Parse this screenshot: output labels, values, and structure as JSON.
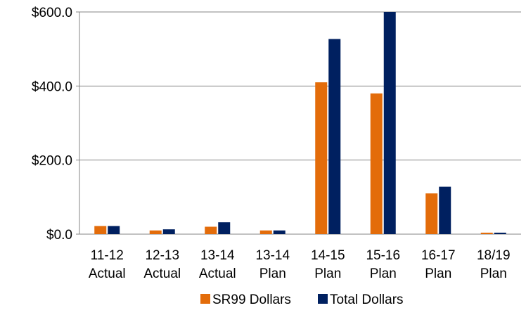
{
  "chart_data": {
    "type": "bar",
    "title": "",
    "xlabel": "",
    "ylabel": "",
    "categories": [
      [
        "11-12",
        "Actual"
      ],
      [
        "12-13",
        "Actual"
      ],
      [
        "13-14",
        "Actual"
      ],
      [
        "13-14",
        "Plan"
      ],
      [
        "14-15",
        "Plan"
      ],
      [
        "15-16",
        "Plan"
      ],
      [
        "16-17",
        "Plan"
      ],
      [
        "18/19",
        "Plan"
      ]
    ],
    "series": [
      {
        "name": "SR99 Dollars",
        "color": "#E36C0A",
        "values": [
          22,
          10,
          20,
          10,
          410,
          380,
          110,
          4
        ]
      },
      {
        "name": "Total Dollars",
        "color": "#002060",
        "values": [
          22,
          13,
          32,
          10,
          527,
          600,
          128,
          4
        ]
      }
    ],
    "ylim": [
      0,
      600
    ],
    "yticks": [
      0,
      200,
      400,
      600
    ],
    "ytick_labels": [
      "$0.0",
      "$200.0",
      "$400.0",
      "$600.0"
    ],
    "grid": true,
    "legend_position": "bottom"
  }
}
